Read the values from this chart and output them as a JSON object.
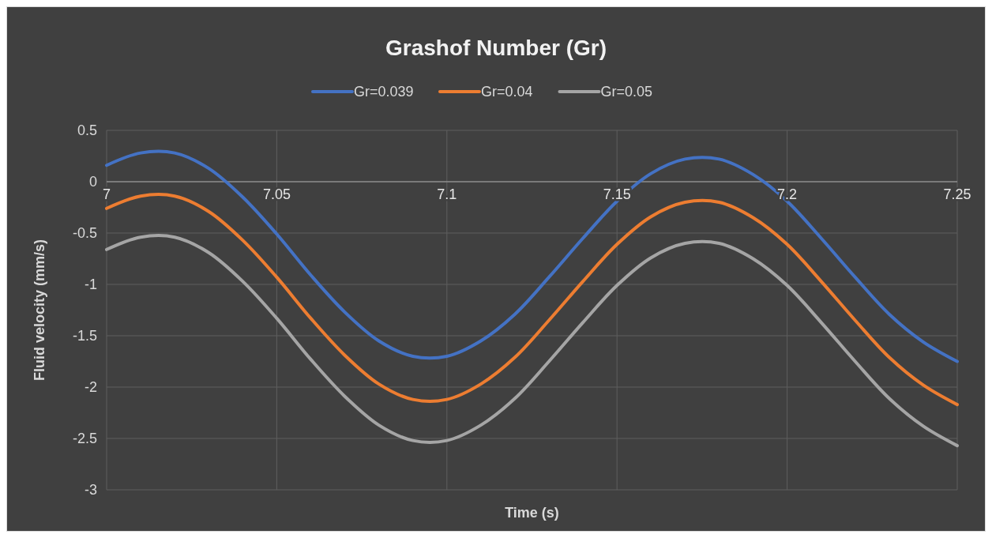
{
  "chart_data": {
    "type": "line",
    "title": "Grashof Number (Gr)",
    "xlabel": "Time (s)",
    "ylabel": "Fluid velocity (mm/s)",
    "x": [
      7.0,
      7.01,
      7.02,
      7.03,
      7.04,
      7.05,
      7.06,
      7.07,
      7.08,
      7.09,
      7.1,
      7.11,
      7.12,
      7.13,
      7.14,
      7.15,
      7.16,
      7.17,
      7.18,
      7.19,
      7.2,
      7.21,
      7.22,
      7.23,
      7.24,
      7.25
    ],
    "series": [
      {
        "name": "Gr=0.039",
        "color": "#4472c4",
        "values": [
          0.16,
          0.28,
          0.28,
          0.13,
          -0.15,
          -0.51,
          -0.91,
          -1.27,
          -1.55,
          -1.7,
          -1.7,
          -1.55,
          -1.29,
          -0.93,
          -0.55,
          -0.19,
          0.08,
          0.22,
          0.22,
          0.07,
          -0.19,
          -0.55,
          -0.93,
          -1.29,
          -1.56,
          -1.75
        ]
      },
      {
        "name": "Gr=0.04",
        "color": "#ed7d31",
        "values": [
          -0.26,
          -0.14,
          -0.14,
          -0.29,
          -0.57,
          -0.93,
          -1.33,
          -1.69,
          -1.97,
          -2.12,
          -2.12,
          -1.97,
          -1.71,
          -1.35,
          -0.97,
          -0.61,
          -0.34,
          -0.2,
          -0.2,
          -0.35,
          -0.61,
          -0.97,
          -1.35,
          -1.71,
          -1.98,
          -2.17
        ]
      },
      {
        "name": "Gr=0.05",
        "color": "#a5a5a5",
        "values": [
          -0.66,
          -0.54,
          -0.54,
          -0.69,
          -0.97,
          -1.33,
          -1.73,
          -2.09,
          -2.37,
          -2.52,
          -2.52,
          -2.37,
          -2.11,
          -1.75,
          -1.37,
          -1.01,
          -0.74,
          -0.6,
          -0.6,
          -0.75,
          -1.01,
          -1.37,
          -1.75,
          -2.11,
          -2.38,
          -2.57
        ]
      }
    ],
    "xlim": [
      7,
      7.25
    ],
    "xticks": [
      7,
      7.05,
      7.1,
      7.15,
      7.2,
      7.25
    ],
    "ylim": [
      -3,
      0.5
    ],
    "yticks": [
      {
        "value": 0.5,
        "label": "0.5"
      },
      0,
      {
        "value": -0.5,
        "label": "-0.5"
      },
      -1,
      {
        "value": -1.5,
        "label": "-1.5"
      },
      -2,
      {
        "value": -2.5,
        "label": "-2.5"
      },
      -3
    ],
    "grid": true,
    "legend": "top",
    "marker": "none",
    "line_style": "solid"
  }
}
